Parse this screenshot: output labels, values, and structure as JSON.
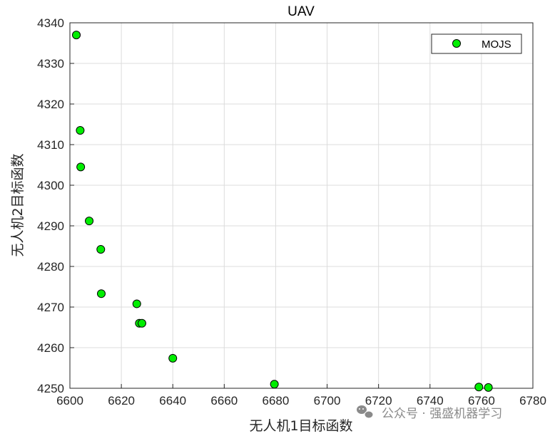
{
  "chart_data": {
    "type": "scatter",
    "title": "UAV",
    "xlabel": "无人机1目标函数",
    "ylabel": "无人机2目标函数",
    "xlim": [
      6600,
      6780
    ],
    "ylim": [
      4250,
      4340
    ],
    "xticks": [
      6600,
      6620,
      6640,
      6660,
      6680,
      6700,
      6720,
      6740,
      6760,
      6780
    ],
    "yticks": [
      4250,
      4260,
      4270,
      4280,
      4290,
      4300,
      4310,
      4320,
      4330,
      4340
    ],
    "grid": true,
    "legend_position": "top-right",
    "series": [
      {
        "name": "MOJS",
        "color": "#00ee00",
        "edge_color": "#000000",
        "points": [
          {
            "x": 6602.5,
            "y": 4337.0
          },
          {
            "x": 6604.0,
            "y": 4313.5
          },
          {
            "x": 6604.2,
            "y": 4304.5
          },
          {
            "x": 6607.5,
            "y": 4291.2
          },
          {
            "x": 6612.0,
            "y": 4284.2
          },
          {
            "x": 6612.2,
            "y": 4273.3
          },
          {
            "x": 6626.0,
            "y": 4270.8
          },
          {
            "x": 6627.0,
            "y": 4266.0
          },
          {
            "x": 6628.0,
            "y": 4266.0
          },
          {
            "x": 6640.0,
            "y": 4257.4
          },
          {
            "x": 6679.5,
            "y": 4251.0
          },
          {
            "x": 6759.0,
            "y": 4250.3
          },
          {
            "x": 6762.7,
            "y": 4250.2
          }
        ]
      }
    ]
  },
  "watermark": {
    "icon": "wechat-icon",
    "text": "公众号 · 强盛机器学习"
  }
}
